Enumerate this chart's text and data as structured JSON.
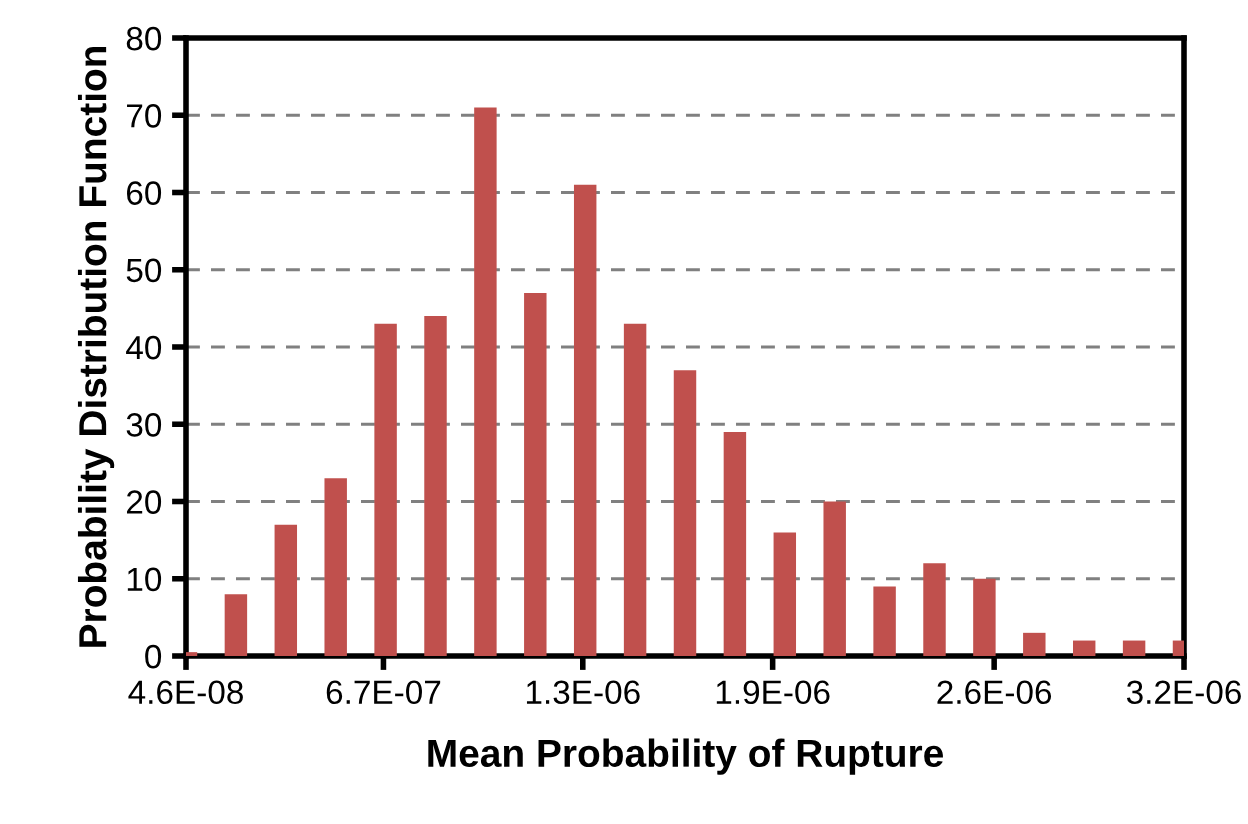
{
  "chart_data": {
    "type": "bar",
    "xlabel": "Mean Probability of Rupture",
    "ylabel": "Probability Distribution Function",
    "x": [
      4.6e-08,
      2.037e-07,
      3.614e-07,
      5.191e-07,
      6.768e-07,
      8.345e-07,
      9.922e-07,
      1.1499e-06,
      1.3076e-06,
      1.4653e-06,
      1.623e-06,
      1.7807e-06,
      1.9384e-06,
      2.0961e-06,
      2.2538e-06,
      2.4115e-06,
      2.5692e-06,
      2.7269e-06,
      2.8846e-06,
      3.0423e-06,
      3.2e-06
    ],
    "values": [
      0.5,
      8,
      17,
      23,
      43,
      44,
      71,
      47,
      61,
      43,
      37,
      29,
      16,
      20,
      9,
      12,
      10,
      3,
      2,
      2,
      2
    ],
    "color": "#c0504d",
    "xlim": [
      4.6e-08,
      3.2e-06
    ],
    "xticks": [
      {
        "value": 4.6e-08,
        "label": "4.6E-08"
      },
      {
        "value": 6.7e-07,
        "label": "6.7E-07"
      },
      {
        "value": 1.3e-06,
        "label": "1.3E-06"
      },
      {
        "value": 1.9e-06,
        "label": "1.9E-06"
      },
      {
        "value": 2.6e-06,
        "label": "2.6E-06"
      },
      {
        "value": 3.2e-06,
        "label": "3.2E-06"
      }
    ],
    "ylim": [
      0,
      80
    ],
    "yticks": [
      0,
      10,
      20,
      30,
      40,
      50,
      60,
      70,
      80
    ],
    "grid": "y"
  }
}
